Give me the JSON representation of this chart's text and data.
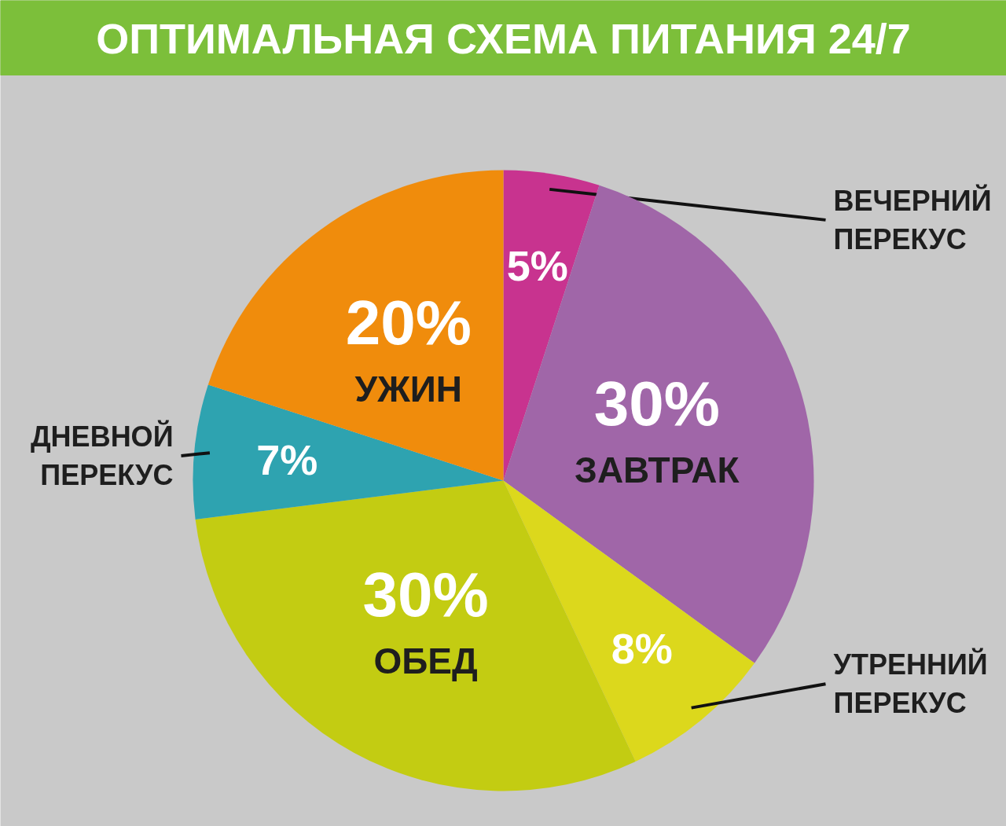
{
  "chart_data": {
    "type": "pie",
    "title": "ОПТИМАЛЬНАЯ СХЕМА ПИТАНИЯ 24/7",
    "categories": [
      "ВЕЧЕРНИЙ ПЕРЕКУС",
      "ЗАВТРАК",
      "УТРЕННИЙ ПЕРЕКУС",
      "ОБЕД",
      "ДНЕВНОЙ ПЕРЕКУС",
      "УЖИН"
    ],
    "values": [
      5,
      30,
      8,
      30,
      7,
      20
    ],
    "colors": [
      "#c8338f",
      "#a066a8",
      "#dcd81c",
      "#c3cc12",
      "#2ea3b0",
      "#f08c0c"
    ],
    "value_labels": [
      "5%",
      "30%",
      "8%",
      "30%",
      "7%",
      "20%"
    ]
  }
}
